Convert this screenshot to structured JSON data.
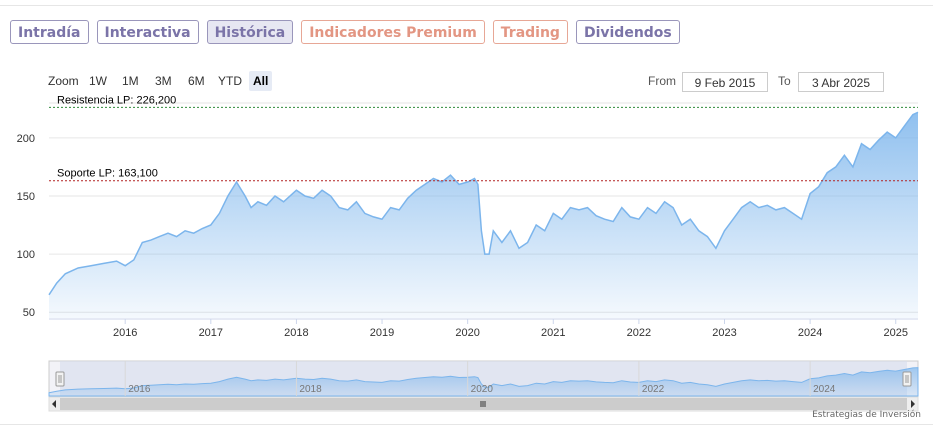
{
  "tabs": [
    {
      "label": "Intradía",
      "style": "purple"
    },
    {
      "label": "Interactiva",
      "style": "purple"
    },
    {
      "label": "Histórica",
      "style": "active"
    },
    {
      "label": "Indicadores Premium",
      "style": "orange"
    },
    {
      "label": "Trading",
      "style": "orange"
    },
    {
      "label": "Dividendos",
      "style": "purple"
    }
  ],
  "range_selector": {
    "zoom_label": "Zoom",
    "buttons": [
      "1W",
      "1M",
      "3M",
      "6M",
      "YTD",
      "All"
    ],
    "selected": "All",
    "from_label": "From",
    "from_value": "9 Feb 2015",
    "to_label": "To",
    "to_value": "3 Abr 2025"
  },
  "credit": "Estrategias de Inversión",
  "colors": {
    "line": "#7cb5ec",
    "resistance": "#2e8b3a",
    "support": "#b22222",
    "tab_purple": "#7b74a8",
    "tab_orange": "#e39683"
  },
  "chart_data": {
    "type": "area",
    "ylim": [
      45,
      230
    ],
    "yticks": [
      50,
      100,
      150,
      200
    ],
    "xlim": [
      2015.11,
      2025.26
    ],
    "xticks": [
      2016,
      2017,
      2018,
      2019,
      2020,
      2021,
      2022,
      2023,
      2024,
      2025
    ],
    "grid": true,
    "lines": [
      {
        "label": "Resistencia LP: 226,200",
        "value": 226.2,
        "style": "dashed",
        "color": "#2e8b3a"
      },
      {
        "label": "Soporte LP: 163,100",
        "value": 163.1,
        "style": "dashed",
        "color": "#b22222"
      }
    ],
    "series": [
      {
        "x": [
          2015.11,
          2015.2,
          2015.3,
          2015.45,
          2015.6,
          2015.75,
          2015.9,
          2016.0,
          2016.1,
          2016.2,
          2016.3,
          2016.4,
          2016.5,
          2016.6,
          2016.7,
          2016.8,
          2016.9,
          2017.0,
          2017.1,
          2017.2,
          2017.3,
          2017.4,
          2017.47,
          2017.55,
          2017.65,
          2017.75,
          2017.85,
          2018.0,
          2018.1,
          2018.2,
          2018.3,
          2018.4,
          2018.5,
          2018.6,
          2018.7,
          2018.8,
          2018.9,
          2019.0,
          2019.1,
          2019.2,
          2019.3,
          2019.4,
          2019.5,
          2019.6,
          2019.7,
          2019.8,
          2019.9,
          2020.0,
          2020.08,
          2020.12,
          2020.16,
          2020.2,
          2020.25,
          2020.3,
          2020.4,
          2020.5,
          2020.6,
          2020.7,
          2020.8,
          2020.9,
          2021.0,
          2021.1,
          2021.2,
          2021.3,
          2021.4,
          2021.5,
          2021.6,
          2021.7,
          2021.8,
          2021.9,
          2022.0,
          2022.1,
          2022.2,
          2022.3,
          2022.4,
          2022.5,
          2022.6,
          2022.7,
          2022.8,
          2022.9,
          2023.0,
          2023.1,
          2023.2,
          2023.3,
          2023.4,
          2023.5,
          2023.6,
          2023.7,
          2023.8,
          2023.9,
          2024.0,
          2024.1,
          2024.2,
          2024.3,
          2024.4,
          2024.5,
          2024.6,
          2024.7,
          2024.8,
          2024.9,
          2025.0,
          2025.1,
          2025.2,
          2025.26
        ],
        "y": [
          65,
          75,
          83,
          88,
          90,
          92,
          94,
          90,
          95,
          110,
          112,
          115,
          118,
          115,
          120,
          118,
          122,
          125,
          135,
          150,
          162,
          150,
          140,
          145,
          142,
          150,
          145,
          155,
          150,
          148,
          155,
          150,
          140,
          138,
          145,
          135,
          132,
          130,
          140,
          138,
          148,
          155,
          160,
          165,
          162,
          168,
          160,
          162,
          165,
          160,
          120,
          100,
          100,
          120,
          110,
          120,
          105,
          110,
          125,
          120,
          135,
          130,
          140,
          138,
          140,
          133,
          130,
          128,
          140,
          132,
          130,
          140,
          135,
          145,
          140,
          125,
          130,
          120,
          115,
          105,
          120,
          130,
          140,
          145,
          140,
          142,
          138,
          140,
          135,
          130,
          152,
          158,
          170,
          175,
          185,
          175,
          195,
          190,
          198,
          205,
          200,
          210,
          220,
          222
        ]
      }
    ]
  },
  "navigator": {
    "year_labels": [
      "2016",
      "2018",
      "2020",
      "2022",
      "2024"
    ],
    "year_values": [
      2016,
      2018,
      2020,
      2022,
      2024
    ]
  }
}
